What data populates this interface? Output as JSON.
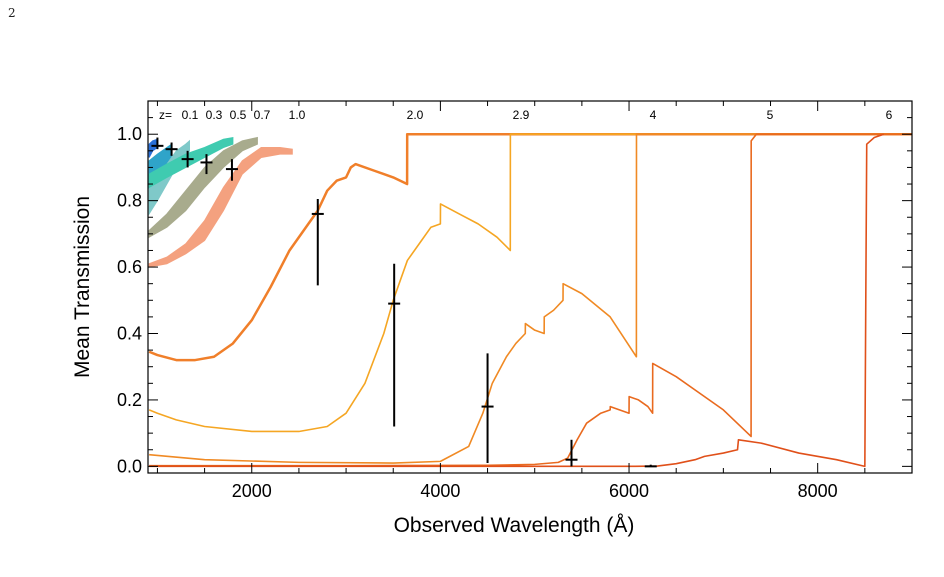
{
  "page": {
    "number": "2"
  },
  "chart_data": {
    "type": "line",
    "title": "",
    "xlabel": "Observed Wavelength (Å)",
    "ylabel": "Mean Transmission",
    "xlim": [
      900,
      9000
    ],
    "ylim": [
      -0.02,
      1.1
    ],
    "xticks": [
      2000,
      4000,
      6000,
      8000
    ],
    "yticks": [
      0.0,
      0.2,
      0.4,
      0.6,
      0.8,
      1.0
    ],
    "ytick_labels": [
      "0.0",
      "0.2",
      "0.4",
      "0.6",
      "0.8",
      "1.0"
    ],
    "z_prefix": "z=",
    "z_labels": [
      {
        "text": "0.1",
        "x": 1337
      },
      {
        "text": "0.3",
        "x": 1580
      },
      {
        "text": "0.5",
        "x": 1823
      },
      {
        "text": "0.7",
        "x": 2066
      },
      {
        "text": "1.0",
        "x": 2431
      },
      {
        "text": "2.0",
        "x": 3647
      },
      {
        "text": "2.9",
        "x": 4741
      },
      {
        "text": "4",
        "x": 6078
      },
      {
        "text": "5",
        "x": 7294
      },
      {
        "text": "6",
        "x": 8510
      }
    ],
    "series": [
      {
        "color": "#2a6fd6",
        "type": "band",
        "points": [
          [
            912,
            0.93,
            0.97
          ],
          [
            950,
            0.95,
            0.98
          ],
          [
            1000,
            0.96,
            0.985
          ]
        ]
      },
      {
        "color": "#2fa4c9",
        "type": "band",
        "points": [
          [
            912,
            0.84,
            0.92
          ],
          [
            1000,
            0.88,
            0.94
          ],
          [
            1100,
            0.91,
            0.96
          ],
          [
            1150,
            0.93,
            0.97
          ]
        ]
      },
      {
        "color": "#7fc9c9",
        "type": "band",
        "points": [
          [
            912,
            0.76,
            0.84
          ],
          [
            1000,
            0.8,
            0.87
          ],
          [
            1100,
            0.85,
            0.91
          ],
          [
            1200,
            0.9,
            0.95
          ],
          [
            1300,
            0.93,
            0.97
          ],
          [
            1340,
            0.95,
            0.98
          ]
        ]
      },
      {
        "color": "#3fcbb0",
        "type": "band",
        "points": [
          [
            912,
            0.84,
            0.88
          ],
          [
            1100,
            0.87,
            0.91
          ],
          [
            1300,
            0.9,
            0.94
          ],
          [
            1500,
            0.93,
            0.96
          ],
          [
            1700,
            0.96,
            0.985
          ],
          [
            1800,
            0.97,
            0.99
          ]
        ]
      },
      {
        "color": "#a8ab8d",
        "type": "band",
        "points": [
          [
            912,
            0.69,
            0.71
          ],
          [
            1100,
            0.72,
            0.76
          ],
          [
            1300,
            0.77,
            0.83
          ],
          [
            1500,
            0.84,
            0.9
          ],
          [
            1700,
            0.9,
            0.95
          ],
          [
            1900,
            0.95,
            0.98
          ],
          [
            2060,
            0.97,
            0.99
          ]
        ]
      },
      {
        "color": "#f4a17f",
        "type": "band",
        "points": [
          [
            912,
            0.6,
            0.61
          ],
          [
            1100,
            0.61,
            0.63
          ],
          [
            1300,
            0.64,
            0.67
          ],
          [
            1500,
            0.68,
            0.74
          ],
          [
            1700,
            0.77,
            0.84
          ],
          [
            1900,
            0.88,
            0.92
          ],
          [
            2100,
            0.93,
            0.96
          ],
          [
            2300,
            0.94,
            0.96
          ],
          [
            2430,
            0.94,
            0.955
          ]
        ]
      },
      {
        "color": "#f07f2a",
        "type": "line",
        "points": [
          [
            912,
            0.345
          ],
          [
            1000,
            0.335
          ],
          [
            1200,
            0.32
          ],
          [
            1400,
            0.32
          ],
          [
            1600,
            0.33
          ],
          [
            1800,
            0.37
          ],
          [
            2000,
            0.44
          ],
          [
            2200,
            0.54
          ],
          [
            2400,
            0.65
          ],
          [
            2600,
            0.73
          ],
          [
            2700,
            0.77
          ],
          [
            2800,
            0.83
          ],
          [
            2900,
            0.86
          ],
          [
            3000,
            0.87
          ],
          [
            3050,
            0.9
          ],
          [
            3100,
            0.91
          ],
          [
            3300,
            0.89
          ],
          [
            3500,
            0.87
          ],
          [
            3647,
            0.85
          ],
          [
            3648,
            1.0
          ],
          [
            9000,
            1.0
          ]
        ]
      },
      {
        "color": "#f5a623",
        "type": "line",
        "points": [
          [
            912,
            0.17
          ],
          [
            1000,
            0.16
          ],
          [
            1200,
            0.14
          ],
          [
            1500,
            0.12
          ],
          [
            2000,
            0.105
          ],
          [
            2500,
            0.105
          ],
          [
            2800,
            0.12
          ],
          [
            3000,
            0.16
          ],
          [
            3200,
            0.25
          ],
          [
            3400,
            0.4
          ],
          [
            3500,
            0.5
          ],
          [
            3650,
            0.62
          ],
          [
            3800,
            0.68
          ],
          [
            3900,
            0.72
          ],
          [
            4000,
            0.73
          ],
          [
            4001,
            0.79
          ],
          [
            4200,
            0.76
          ],
          [
            4400,
            0.73
          ],
          [
            4600,
            0.69
          ],
          [
            4741,
            0.65
          ],
          [
            4742,
            1.0
          ],
          [
            9000,
            1.0
          ]
        ]
      },
      {
        "color": "#f08a24",
        "type": "line",
        "points": [
          [
            912,
            0.035
          ],
          [
            1500,
            0.02
          ],
          [
            2500,
            0.012
          ],
          [
            3500,
            0.01
          ],
          [
            4000,
            0.015
          ],
          [
            4300,
            0.06
          ],
          [
            4450,
            0.16
          ],
          [
            4550,
            0.25
          ],
          [
            4700,
            0.33
          ],
          [
            4800,
            0.37
          ],
          [
            4900,
            0.4
          ],
          [
            4901,
            0.43
          ],
          [
            5000,
            0.41
          ],
          [
            5100,
            0.4
          ],
          [
            5101,
            0.45
          ],
          [
            5200,
            0.47
          ],
          [
            5300,
            0.5
          ],
          [
            5301,
            0.55
          ],
          [
            5500,
            0.52
          ],
          [
            5800,
            0.45
          ],
          [
            6078,
            0.33
          ],
          [
            6079,
            1.0
          ],
          [
            9000,
            1.0
          ]
        ]
      },
      {
        "color": "#e96a1f",
        "type": "line",
        "points": [
          [
            912,
            0.002
          ],
          [
            3000,
            0.002
          ],
          [
            4500,
            0.003
          ],
          [
            5000,
            0.006
          ],
          [
            5250,
            0.012
          ],
          [
            5350,
            0.025
          ],
          [
            5450,
            0.08
          ],
          [
            5550,
            0.13
          ],
          [
            5700,
            0.16
          ],
          [
            5800,
            0.17
          ],
          [
            5801,
            0.18
          ],
          [
            6000,
            0.16
          ],
          [
            6001,
            0.21
          ],
          [
            6100,
            0.2
          ],
          [
            6200,
            0.18
          ],
          [
            6250,
            0.16
          ],
          [
            6251,
            0.31
          ],
          [
            6500,
            0.27
          ],
          [
            7000,
            0.17
          ],
          [
            7294,
            0.09
          ],
          [
            7295,
            0.98
          ],
          [
            7350,
            1.0
          ],
          [
            9000,
            1.0
          ]
        ]
      },
      {
        "color": "#e0501a",
        "type": "line",
        "points": [
          [
            912,
            0.0
          ],
          [
            6000,
            0.0
          ],
          [
            6300,
            0.001
          ],
          [
            6500,
            0.008
          ],
          [
            6700,
            0.02
          ],
          [
            6800,
            0.03
          ],
          [
            7000,
            0.04
          ],
          [
            7150,
            0.05
          ],
          [
            7160,
            0.08
          ],
          [
            7400,
            0.07
          ],
          [
            7800,
            0.04
          ],
          [
            8200,
            0.02
          ],
          [
            8500,
            0.0
          ],
          [
            8510,
            0.5
          ],
          [
            8520,
            0.97
          ],
          [
            8600,
            0.99
          ],
          [
            8700,
            1.0
          ]
        ]
      }
    ],
    "data_points": [
      {
        "x": 1000,
        "y": 0.965,
        "yerr_low": 0.955,
        "yerr_high": 0.99
      },
      {
        "x": 1150,
        "y": 0.955,
        "yerr_low": 0.935,
        "yerr_high": 0.975
      },
      {
        "x": 1320,
        "y": 0.925,
        "yerr_low": 0.9,
        "yerr_high": 0.95
      },
      {
        "x": 1520,
        "y": 0.915,
        "yerr_low": 0.88,
        "yerr_high": 0.94
      },
      {
        "x": 1790,
        "y": 0.895,
        "yerr_low": 0.86,
        "yerr_high": 0.925
      },
      {
        "x": 2700,
        "y": 0.76,
        "yerr_low": 0.545,
        "yerr_high": 0.805
      },
      {
        "x": 3510,
        "y": 0.49,
        "yerr_low": 0.12,
        "yerr_high": 0.61
      },
      {
        "x": 4500,
        "y": 0.18,
        "yerr_low": 0.01,
        "yerr_high": 0.34
      },
      {
        "x": 5390,
        "y": 0.02,
        "yerr_low": 0.0,
        "yerr_high": 0.08
      },
      {
        "x": 6230,
        "y": 0.0,
        "yerr_low": 0.0,
        "yerr_high": 0.005
      }
    ]
  }
}
